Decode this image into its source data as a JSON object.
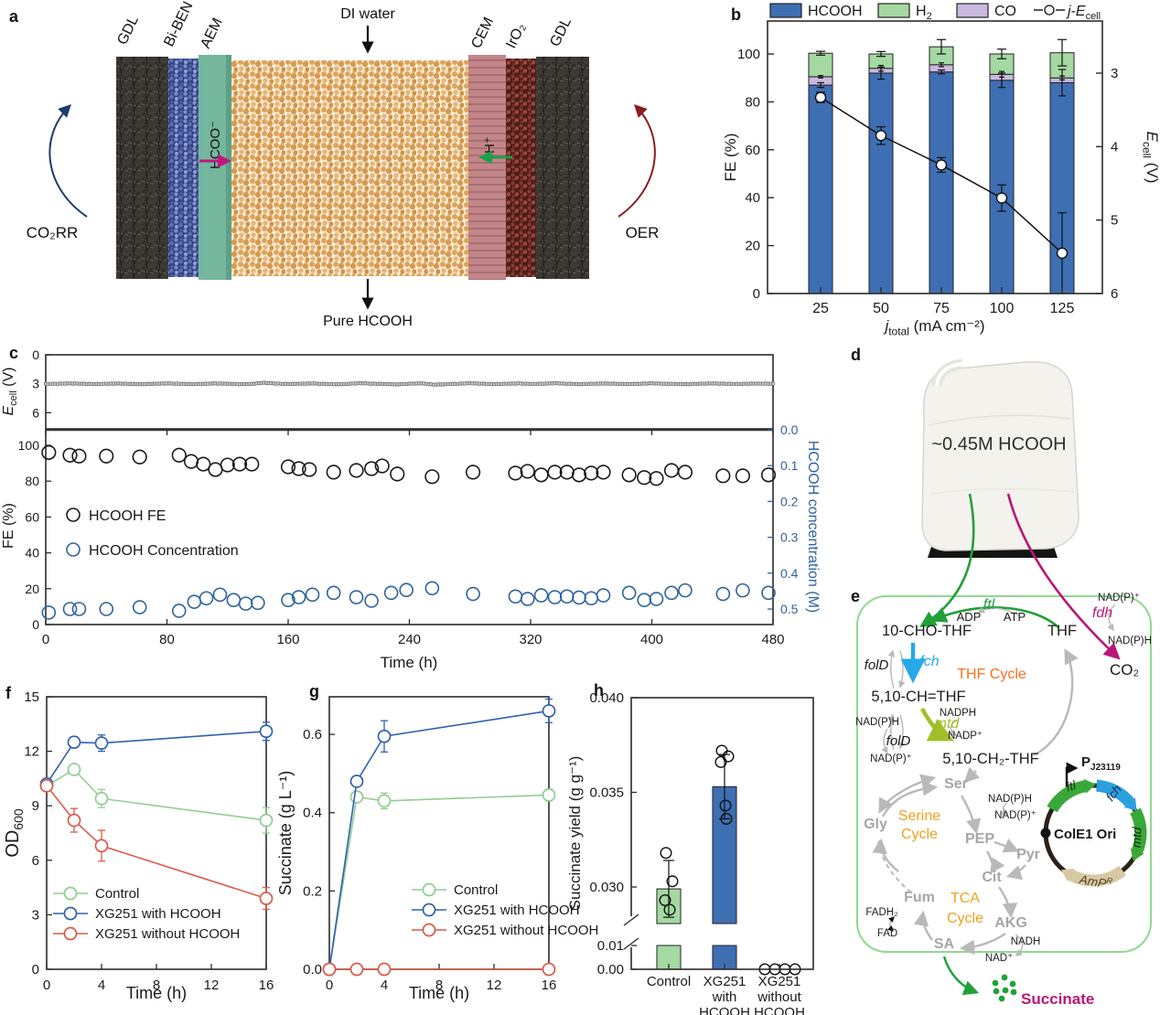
{
  "figure": {
    "panel_letters": {
      "a": "a",
      "b": "b",
      "c": "c",
      "d": "d",
      "e": "e",
      "f": "f",
      "g": "g",
      "h": "h"
    }
  },
  "panel_a": {
    "layer_labels": {
      "gdl_left": "GDL",
      "bi_ben": "Bi-BEN",
      "aem": "AEM",
      "cem": "CEM",
      "iro2": "IrO₂",
      "gdl_right": "GDL"
    },
    "annotations": {
      "di_water": "DI water",
      "pure_hcooh": "Pure HCOOH",
      "co2rr": "CO₂RR",
      "oer": "OER",
      "hcoo_ion": "HCOO⁻",
      "proton": "H⁺"
    },
    "colors": {
      "aem": "#74b69e",
      "cem": "#c28689",
      "bed": "#dfa45c",
      "biben": "#35447c",
      "iro2": "#4a1f1b",
      "gdl": "#3b3733",
      "hcoo_arrow": "#c2187e",
      "proton_arrow": "#1f9e4b",
      "co2rr_arrow": "#1e3a6e",
      "oer_arrow": "#8a1c24"
    }
  },
  "panel_d": {
    "jug_label": "~0.45M HCOOH"
  },
  "pathway": {
    "labels": {
      "ftl": "ftl",
      "adp": "ADP",
      "atp": "ATP",
      "cho_thf": "10-CHO-THF",
      "thf": "THF",
      "nadp1": "NAD(P)⁺",
      "fdh": "fdh",
      "nadph1": "NAD(P)H",
      "co2": "CO₂",
      "fold1": "folD",
      "fch": "fch",
      "thf_cycle": "THF Cycle",
      "ch_thf": "5,10-CH=THF",
      "nadph2": "NADPH",
      "mtd": "mtd",
      "nadp2": "NADP⁺",
      "nadph3": "NAD(P)H",
      "fold2": "folD",
      "nadp3": "NAD(P)⁺",
      "ch2_thf": "5,10-CH₂-THF",
      "ser": "Ser",
      "gly": "Gly",
      "serine1": "Serine",
      "serine2": "Cycle",
      "nadph4": "NAD(P)H",
      "nadp4": "NAD(P)⁺",
      "pep": "PEP",
      "pyr": "Pyr",
      "cit": "Cit",
      "fum": "Fum",
      "tca1": "TCA",
      "tca2": "Cycle",
      "akg": "AKG",
      "fadh2": "FADH₂",
      "fad": "FAD",
      "sa": "SA",
      "nadh": "NADH",
      "nad": "NAD⁺",
      "cole1": "ColE1 Ori",
      "gene_ftl": "ftl",
      "gene_fch": "fch",
      "gene_mtd": "mtd",
      "succinate": "Succinate",
      "promoter_segments": [
        {
          "t": "P",
          "b": 1
        },
        {
          "t": "J23119",
          "sub": 1,
          "b": 1
        }
      ],
      "amp_segments": [
        {
          "t": "AmP",
          "i": 1
        },
        {
          "t": "R",
          "sup": 1,
          "i": 1
        }
      ]
    },
    "colors": {
      "green": "#21a038",
      "magenta": "#bb1677",
      "blue": "#27a8e8",
      "ygreen": "#a0bf2a",
      "thf_orange": "#f8701e",
      "cycle_amber": "#f0a11e",
      "gray_text": "#a6a6a6",
      "gray_arrow": "#b9b9b9",
      "gene_green": "#3aa838",
      "gene_blue": "#2b9fe0",
      "amp_tan": "#d8c9a3",
      "plasmid": "#2b2118"
    }
  },
  "chart_data": {
    "b": {
      "type": "bar",
      "categories": [
        25,
        50,
        75,
        100,
        125
      ],
      "xlabel_segments": [
        {
          "t": "j",
          "i": 1
        },
        {
          "t": "total",
          "sub": 1
        },
        {
          "t": " (mA cm⁻²)"
        }
      ],
      "ylabel_left": "FE (%)",
      "ylabel_right_segments": [
        {
          "t": "E",
          "i": 1
        },
        {
          "t": "cell",
          "sub": 1
        },
        {
          "t": " (V)"
        }
      ],
      "yticks_left": [
        0,
        20,
        40,
        60,
        80,
        100
      ],
      "yticks_right": [
        3,
        4,
        5,
        6
      ],
      "stack_series": [
        {
          "name": "HCOOH",
          "color": "#3e6fb3",
          "values": [
            87,
            92,
            92.5,
            89,
            88
          ],
          "errors": [
            1,
            2.5,
            0.8,
            3,
            5.5
          ]
        },
        {
          "name": "CO",
          "color": "#c9b9df",
          "values": [
            3.5,
            2,
            3,
            2.5,
            2
          ],
          "errors": [
            0.5,
            1.2,
            0.8,
            1.2,
            0.8
          ]
        },
        {
          "name": "H₂",
          "color": "#a4d9a2",
          "values": [
            9.8,
            6,
            7.5,
            8.5,
            10.5
          ],
          "errors": [
            0.8,
            1,
            3,
            2,
            5.5
          ]
        }
      ],
      "legend": [
        {
          "label": "HCOOH",
          "color": "#3e6fb3"
        },
        {
          "label": "H₂",
          "color": "#a4d9a2"
        },
        {
          "label": "CO",
          "color": "#c9b9df"
        }
      ],
      "line_series": {
        "label_segments": [
          {
            "t": "j",
            "i": 1
          },
          {
            "t": "-"
          },
          {
            "t": "E",
            "i": 1
          },
          {
            "t": "cell",
            "sub": 1
          }
        ],
        "values": [
          3.33,
          3.85,
          4.25,
          4.7,
          5.45
        ],
        "errors": [
          0.07,
          0.12,
          0.1,
          0.18,
          0.55
        ]
      }
    },
    "c": {
      "xlabel": "Time (h)",
      "xticks": [
        0,
        80,
        160,
        240,
        320,
        400,
        480
      ],
      "xlim": [
        0,
        480
      ],
      "top": {
        "ylabel_segments": [
          {
            "t": "E",
            "i": 1
          },
          {
            "t": "cell",
            "sub": 1
          },
          {
            "t": " (V)"
          }
        ],
        "yticks": [
          0,
          3,
          6
        ],
        "t_step": 8,
        "ecell_values": [
          3.02,
          3.0,
          2.97,
          3.0,
          3.03,
          3.0,
          2.98,
          3.02,
          3.05,
          3.0,
          2.97,
          3.0,
          3.04,
          3.01,
          2.97,
          3.0,
          3.05,
          3.02,
          2.9,
          2.98,
          3.03,
          3.0,
          2.97,
          3.02,
          3.06,
          3.0,
          2.95,
          3.0,
          3.03,
          3.07,
          3.0,
          2.96,
          3.1,
          3.05,
          3.0,
          2.95,
          3.0,
          3.04,
          3.0,
          2.97,
          3.02,
          3.0,
          2.95,
          3.0,
          3.05,
          3.01,
          2.98,
          3.0,
          3.03,
          3.0,
          2.96,
          3.0,
          3.02,
          3.05,
          3.0,
          2.97,
          3.0,
          3.02,
          3.0,
          2.99,
          3.0
        ]
      },
      "bottom": {
        "ylabel": "FE (%)",
        "yticks": [
          0,
          20,
          40,
          60,
          80,
          100
        ],
        "ylabel_right": "HCOOH concentration (M)",
        "yticks_right": [
          0.0,
          0.1,
          0.2,
          0.3,
          0.4,
          0.5
        ],
        "right_color": "#2f639c",
        "legend": [
          {
            "label": "HCOOH FE",
            "color": "#1a1a1a"
          },
          {
            "label": "HCOOH Concentration",
            "color": "#2f639c"
          }
        ],
        "fe_points": [
          [
            2,
            96
          ],
          [
            16,
            94.5
          ],
          [
            22,
            94
          ],
          [
            40,
            94
          ],
          [
            62,
            93.5
          ],
          [
            88,
            94.5
          ],
          [
            96,
            91
          ],
          [
            104,
            89.5
          ],
          [
            112,
            86.5
          ],
          [
            120,
            89
          ],
          [
            128,
            89.5
          ],
          [
            136,
            89.5
          ],
          [
            160,
            88
          ],
          [
            167,
            87
          ],
          [
            174,
            86.5
          ],
          [
            190,
            85
          ],
          [
            205,
            86
          ],
          [
            215,
            87
          ],
          [
            222,
            88.5
          ],
          [
            232,
            84
          ],
          [
            255,
            82.5
          ],
          [
            282,
            85
          ],
          [
            310,
            84.5
          ],
          [
            318,
            85.5
          ],
          [
            327,
            83.5
          ],
          [
            336,
            85
          ],
          [
            344,
            85
          ],
          [
            352,
            83.5
          ],
          [
            360,
            84.5
          ],
          [
            368,
            85
          ],
          [
            385,
            83.5
          ],
          [
            395,
            82
          ],
          [
            403,
            81.5
          ],
          [
            413,
            86
          ],
          [
            422,
            85
          ],
          [
            447,
            83
          ],
          [
            460,
            83
          ],
          [
            477,
            83.5
          ]
        ],
        "conc_points": [
          [
            2,
            0.51
          ],
          [
            16,
            0.5
          ],
          [
            22,
            0.5
          ],
          [
            40,
            0.5
          ],
          [
            62,
            0.495
          ],
          [
            88,
            0.505
          ],
          [
            98,
            0.48
          ],
          [
            106,
            0.47
          ],
          [
            115,
            0.46
          ],
          [
            124,
            0.475
          ],
          [
            132,
            0.485
          ],
          [
            140,
            0.483
          ],
          [
            160,
            0.475
          ],
          [
            167,
            0.467
          ],
          [
            176,
            0.46
          ],
          [
            190,
            0.455
          ],
          [
            205,
            0.467
          ],
          [
            215,
            0.477
          ],
          [
            228,
            0.455
          ],
          [
            238,
            0.447
          ],
          [
            255,
            0.442
          ],
          [
            282,
            0.458
          ],
          [
            310,
            0.465
          ],
          [
            318,
            0.472
          ],
          [
            327,
            0.462
          ],
          [
            336,
            0.467
          ],
          [
            344,
            0.465
          ],
          [
            352,
            0.468
          ],
          [
            360,
            0.47
          ],
          [
            368,
            0.462
          ],
          [
            385,
            0.455
          ],
          [
            395,
            0.475
          ],
          [
            403,
            0.472
          ],
          [
            413,
            0.455
          ],
          [
            422,
            0.448
          ],
          [
            447,
            0.458
          ],
          [
            460,
            0.448
          ],
          [
            477,
            0.455
          ]
        ]
      }
    },
    "f": {
      "type": "line",
      "xlabel": "Time (h)",
      "ylabel_segments": [
        {
          "t": "OD"
        },
        {
          "t": "600",
          "sub": 1
        }
      ],
      "x": [
        0,
        2,
        4,
        16
      ],
      "xticks": [
        0,
        4,
        8,
        12,
        16
      ],
      "yticks": [
        0,
        3,
        6,
        9,
        12,
        15
      ],
      "ylim": [
        0,
        15
      ],
      "series": [
        {
          "name": "Control",
          "color": "#8fce8f",
          "values": [
            10.1,
            11.0,
            9.4,
            8.2
          ],
          "errors": [
            0.2,
            0.25,
            0.5,
            0.7
          ]
        },
        {
          "name": "XG251 with HCOOH",
          "color": "#2f62ad",
          "values": [
            10.2,
            12.5,
            12.45,
            13.1
          ],
          "errors": [
            0.2,
            0.3,
            0.45,
            0.5
          ]
        },
        {
          "name": "XG251 without HCOOH",
          "color": "#da5a48",
          "values": [
            10.1,
            8.2,
            6.8,
            3.9
          ],
          "errors": [
            0.2,
            0.65,
            0.85,
            0.6
          ]
        }
      ]
    },
    "g": {
      "type": "line",
      "xlabel": "Time (h)",
      "ylabel": "Succinate (g L⁻¹)",
      "x": [
        0,
        2,
        4,
        16
      ],
      "xticks": [
        0,
        4,
        8,
        12,
        16
      ],
      "yticks": [
        0.0,
        0.2,
        0.4,
        0.6
      ],
      "ylim": [
        0,
        0.696
      ],
      "series": [
        {
          "name": "Control",
          "color": "#8fce8f",
          "values": [
            0,
            0.44,
            0.43,
            0.445
          ],
          "errors": [
            0.005,
            0.01,
            0.02,
            0.015
          ]
        },
        {
          "name": "XG251 with HCOOH",
          "color": "#2f62ad",
          "values": [
            0,
            0.48,
            0.595,
            0.66
          ],
          "errors": [
            0.005,
            0.012,
            0.04,
            0.03
          ]
        },
        {
          "name": "XG251 without HCOOH",
          "color": "#da5a48",
          "values": [
            0,
            0,
            0,
            0
          ],
          "errors": [
            0,
            0,
            0,
            0
          ]
        }
      ]
    },
    "h": {
      "type": "bar",
      "ylabel": "Succinate yield (g g⁻¹)",
      "broken_axis": true,
      "yticks_top": [
        0.03,
        0.035,
        0.04
      ],
      "yticks_bottom": [
        0.0,
        0.01
      ],
      "categories": [
        [
          "Control"
        ],
        [
          "XG251",
          "with",
          "HCOOH"
        ],
        [
          "XG251",
          "without",
          "HCOOH"
        ]
      ],
      "bars": [
        {
          "value": 0.0299,
          "error": 0.0015,
          "color": "#a4d9a2",
          "points": [
            0.0318,
            0.0303,
            0.0293,
            0.0288
          ]
        },
        {
          "value": 0.0353,
          "error": 0.0017,
          "color": "#3e6fb3",
          "points": [
            0.0372,
            0.0369,
            0.0366,
            0.0343,
            0.0336
          ]
        },
        {
          "value": 0,
          "error": 0,
          "color": "#ffffff",
          "points": [
            0,
            0,
            0,
            0
          ]
        }
      ]
    }
  }
}
